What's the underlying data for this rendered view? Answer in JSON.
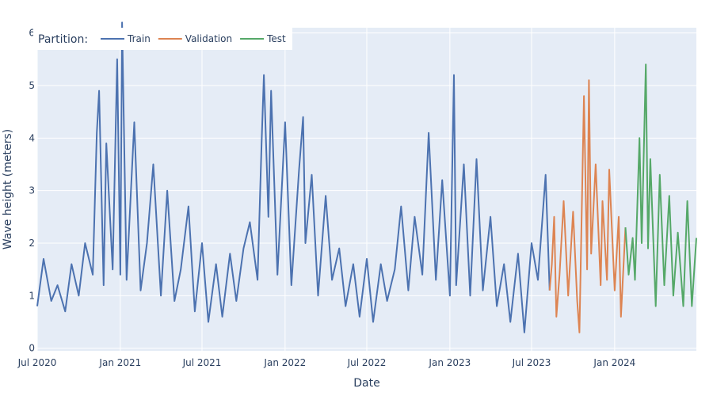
{
  "chart_data": {
    "type": "line",
    "xlabel": "Date",
    "ylabel": "Wave height (meters)",
    "xlim": [
      "2020-07-01",
      "2024-06-30"
    ],
    "ylim": [
      -0.05,
      6.1
    ],
    "x_ticks": [
      {
        "date": "2020-07-01",
        "label": "Jul 2020"
      },
      {
        "date": "2021-01-01",
        "label": "Jan 2021"
      },
      {
        "date": "2021-07-01",
        "label": "Jul 2021"
      },
      {
        "date": "2022-01-01",
        "label": "Jan 2022"
      },
      {
        "date": "2022-07-01",
        "label": "Jul 2022"
      },
      {
        "date": "2023-01-01",
        "label": "Jan 2023"
      },
      {
        "date": "2023-07-01",
        "label": "Jul 2023"
      },
      {
        "date": "2024-01-01",
        "label": "Jan 2024"
      }
    ],
    "y_ticks": [
      0,
      1,
      2,
      3,
      4,
      5,
      6
    ],
    "grid": true,
    "legend": {
      "title": "Partition:",
      "position": "top-left",
      "orientation": "horizontal"
    },
    "series": [
      {
        "name": "Train",
        "color": "#4c72b0",
        "points": [
          [
            "2020-07-01",
            0.8
          ],
          [
            "2020-07-15",
            1.7
          ],
          [
            "2020-08-01",
            0.9
          ],
          [
            "2020-08-15",
            1.2
          ],
          [
            "2020-09-01",
            0.7
          ],
          [
            "2020-09-15",
            1.6
          ],
          [
            "2020-10-01",
            1.0
          ],
          [
            "2020-10-15",
            2.0
          ],
          [
            "2020-11-01",
            1.4
          ],
          [
            "2020-11-10",
            4.1
          ],
          [
            "2020-11-15",
            4.9
          ],
          [
            "2020-11-25",
            1.2
          ],
          [
            "2020-12-01",
            3.9
          ],
          [
            "2020-12-15",
            1.5
          ],
          [
            "2020-12-25",
            5.5
          ],
          [
            "2021-01-01",
            1.4
          ],
          [
            "2021-01-05",
            6.2
          ],
          [
            "2021-01-15",
            1.3
          ],
          [
            "2021-02-01",
            4.3
          ],
          [
            "2021-02-15",
            1.1
          ],
          [
            "2021-03-01",
            2.0
          ],
          [
            "2021-03-15",
            3.5
          ],
          [
            "2021-04-01",
            1.0
          ],
          [
            "2021-04-15",
            3.0
          ],
          [
            "2021-05-01",
            0.9
          ],
          [
            "2021-05-15",
            1.5
          ],
          [
            "2021-06-01",
            2.7
          ],
          [
            "2021-06-15",
            0.7
          ],
          [
            "2021-07-01",
            2.0
          ],
          [
            "2021-07-15",
            0.5
          ],
          [
            "2021-08-01",
            1.6
          ],
          [
            "2021-08-15",
            0.6
          ],
          [
            "2021-09-01",
            1.8
          ],
          [
            "2021-09-15",
            0.9
          ],
          [
            "2021-10-01",
            1.9
          ],
          [
            "2021-10-15",
            2.4
          ],
          [
            "2021-11-01",
            1.3
          ],
          [
            "2021-11-10",
            3.9
          ],
          [
            "2021-11-15",
            5.2
          ],
          [
            "2021-11-25",
            2.5
          ],
          [
            "2021-12-01",
            4.9
          ],
          [
            "2021-12-15",
            1.4
          ],
          [
            "2022-01-01",
            4.3
          ],
          [
            "2022-01-15",
            1.2
          ],
          [
            "2022-02-01",
            3.4
          ],
          [
            "2022-02-10",
            4.4
          ],
          [
            "2022-02-15",
            2.0
          ],
          [
            "2022-03-01",
            3.3
          ],
          [
            "2022-03-15",
            1.0
          ],
          [
            "2022-04-01",
            2.9
          ],
          [
            "2022-04-15",
            1.3
          ],
          [
            "2022-05-01",
            1.9
          ],
          [
            "2022-05-15",
            0.8
          ],
          [
            "2022-06-01",
            1.6
          ],
          [
            "2022-06-15",
            0.6
          ],
          [
            "2022-07-01",
            1.7
          ],
          [
            "2022-07-15",
            0.5
          ],
          [
            "2022-08-01",
            1.6
          ],
          [
            "2022-08-15",
            0.9
          ],
          [
            "2022-09-01",
            1.5
          ],
          [
            "2022-09-15",
            2.7
          ],
          [
            "2022-10-01",
            1.1
          ],
          [
            "2022-10-15",
            2.5
          ],
          [
            "2022-11-01",
            1.4
          ],
          [
            "2022-11-15",
            4.1
          ],
          [
            "2022-12-01",
            1.3
          ],
          [
            "2022-12-15",
            3.2
          ],
          [
            "2023-01-01",
            1.0
          ],
          [
            "2023-01-10",
            5.2
          ],
          [
            "2023-01-15",
            1.2
          ],
          [
            "2023-02-01",
            3.5
          ],
          [
            "2023-02-15",
            1.0
          ],
          [
            "2023-03-01",
            3.6
          ],
          [
            "2023-03-15",
            1.1
          ],
          [
            "2023-04-01",
            2.5
          ],
          [
            "2023-04-15",
            0.8
          ],
          [
            "2023-05-01",
            1.6
          ],
          [
            "2023-05-15",
            0.5
          ],
          [
            "2023-06-01",
            1.8
          ],
          [
            "2023-06-15",
            0.3
          ],
          [
            "2023-07-01",
            2.0
          ],
          [
            "2023-07-15",
            1.3
          ],
          [
            "2023-08-01",
            3.3
          ],
          [
            "2023-08-10",
            1.1
          ]
        ]
      },
      {
        "name": "Validation",
        "color": "#dd8452",
        "points": [
          [
            "2023-08-10",
            1.1
          ],
          [
            "2023-08-15",
            1.6
          ],
          [
            "2023-08-20",
            2.5
          ],
          [
            "2023-08-25",
            0.6
          ],
          [
            "2023-09-01",
            1.4
          ],
          [
            "2023-09-10",
            2.8
          ],
          [
            "2023-09-20",
            1.0
          ],
          [
            "2023-10-01",
            2.6
          ],
          [
            "2023-10-10",
            0.9
          ],
          [
            "2023-10-15",
            0.3
          ],
          [
            "2023-10-25",
            4.8
          ],
          [
            "2023-11-01",
            1.5
          ],
          [
            "2023-11-05",
            5.1
          ],
          [
            "2023-11-10",
            1.8
          ],
          [
            "2023-11-20",
            3.5
          ],
          [
            "2023-12-01",
            1.2
          ],
          [
            "2023-12-05",
            2.8
          ],
          [
            "2023-12-15",
            1.3
          ],
          [
            "2023-12-20",
            3.4
          ],
          [
            "2024-01-01",
            1.1
          ],
          [
            "2024-01-10",
            2.5
          ],
          [
            "2024-01-15",
            0.6
          ],
          [
            "2024-01-25",
            2.3
          ]
        ]
      },
      {
        "name": "Test",
        "color": "#55a868",
        "points": [
          [
            "2024-01-25",
            2.3
          ],
          [
            "2024-02-01",
            1.4
          ],
          [
            "2024-02-10",
            2.1
          ],
          [
            "2024-02-15",
            1.3
          ],
          [
            "2024-02-25",
            4.0
          ],
          [
            "2024-03-01",
            2.0
          ],
          [
            "2024-03-10",
            5.4
          ],
          [
            "2024-03-15",
            1.9
          ],
          [
            "2024-03-20",
            3.6
          ],
          [
            "2024-04-01",
            0.8
          ],
          [
            "2024-04-10",
            3.3
          ],
          [
            "2024-04-20",
            1.2
          ],
          [
            "2024-05-01",
            2.9
          ],
          [
            "2024-05-10",
            1.0
          ],
          [
            "2024-05-20",
            2.2
          ],
          [
            "2024-06-01",
            0.8
          ],
          [
            "2024-06-10",
            2.8
          ],
          [
            "2024-06-20",
            0.8
          ],
          [
            "2024-06-30",
            2.1
          ]
        ]
      }
    ]
  }
}
